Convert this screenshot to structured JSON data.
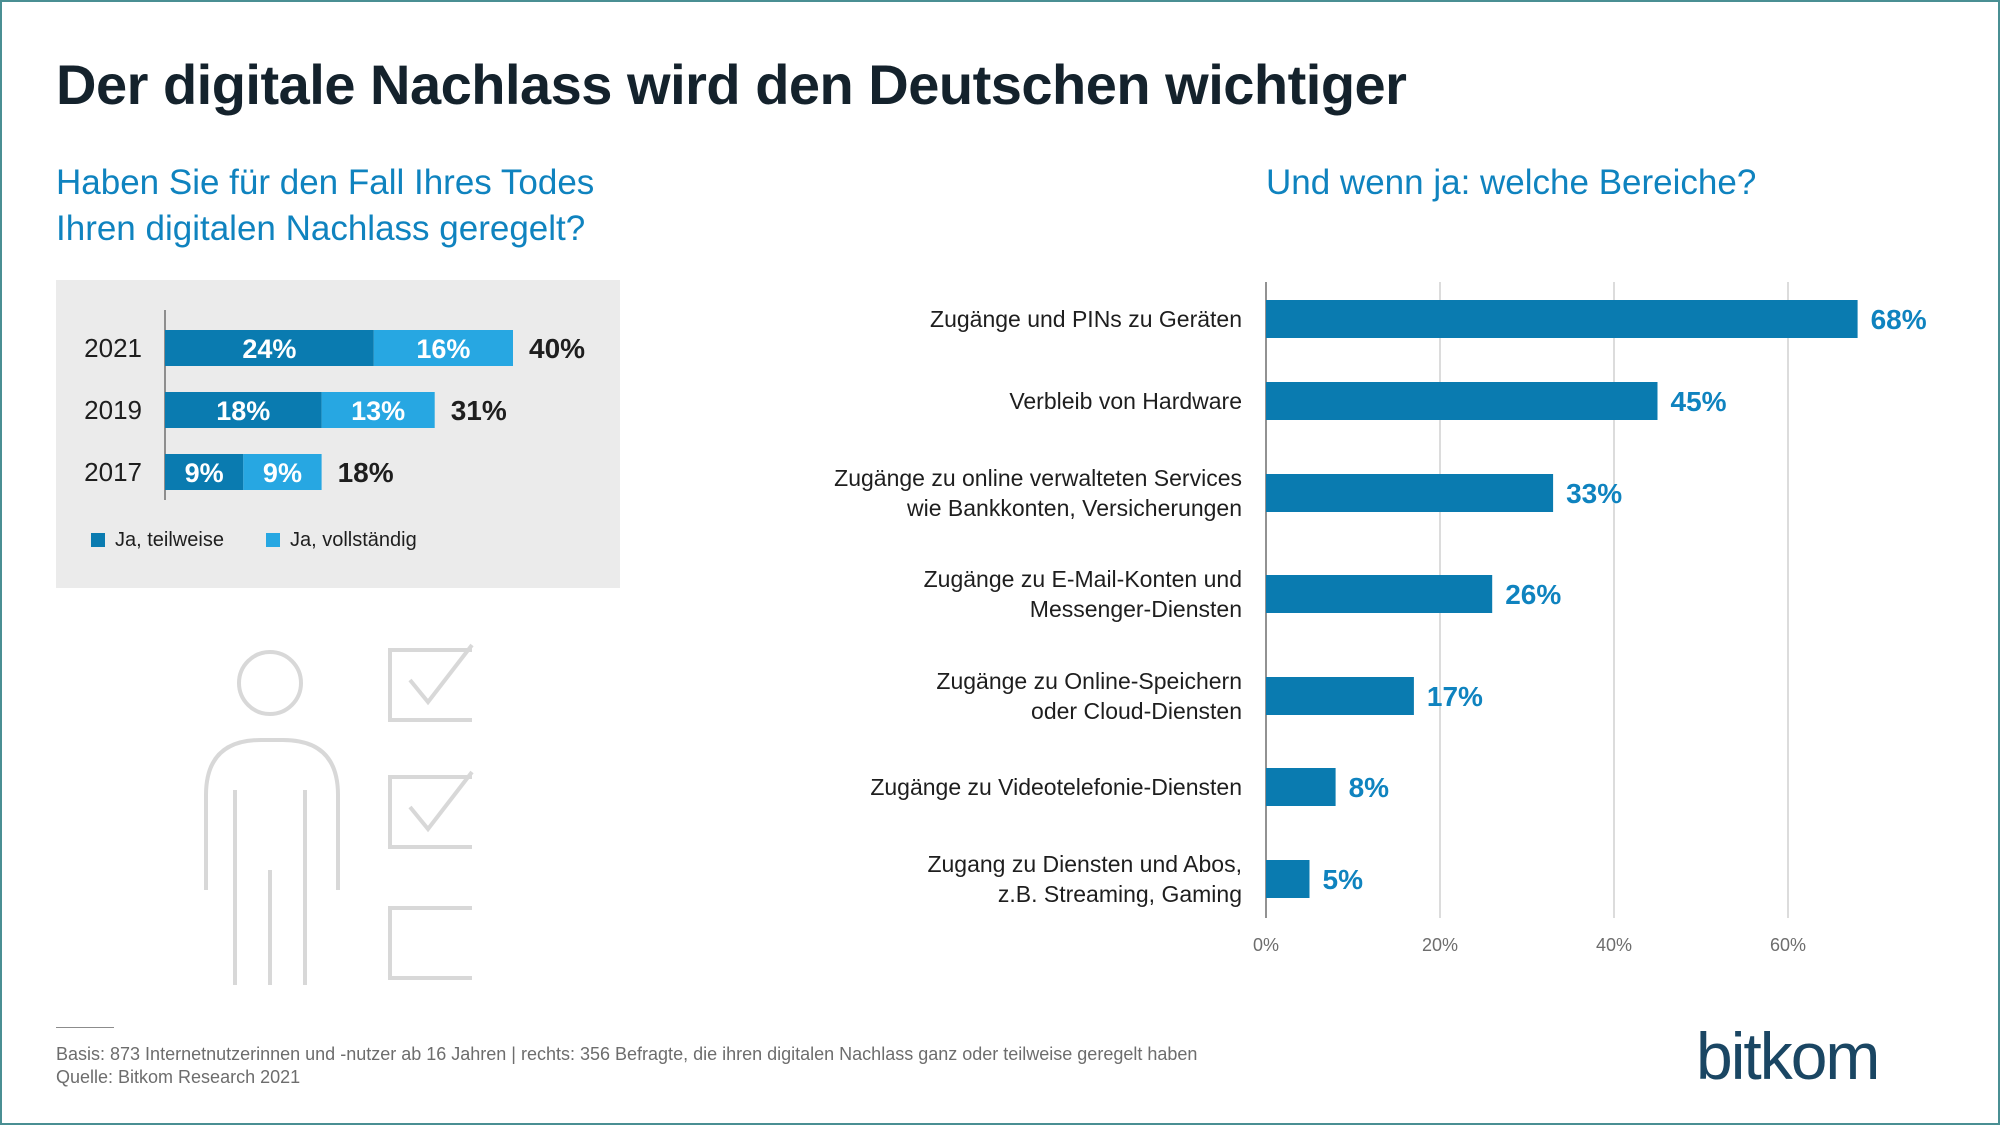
{
  "title": "Der digitale Nachlass wird den Deutschen wichtiger",
  "left_subtitle": [
    "Haben Sie für den Fall Ihres Todes",
    "Ihren digitalen Nachlass geregelt?"
  ],
  "right_subtitle": "Und wenn ja: welche Bereiche?",
  "colors": {
    "dark_blue": "#0a7bb0",
    "light_blue": "#27a7e2",
    "bar_blue": "#0a7bb0",
    "label_blue": "#0f83bf",
    "text_dark": "#1e1e1e",
    "icon_gray": "#d8d8d8"
  },
  "chart_data": [
    {
      "type": "bar",
      "orientation": "horizontal",
      "stacked": true,
      "categories": [
        "2021",
        "2019",
        "2017"
      ],
      "series": [
        {
          "name": "Ja, teilweise",
          "values": [
            24,
            18,
            9
          ],
          "labels": [
            "24%",
            "18%",
            "9%"
          ]
        },
        {
          "name": "Ja, vollständig",
          "values": [
            16,
            13,
            9
          ],
          "labels": [
            "16%",
            "13%",
            "9%"
          ]
        }
      ],
      "totals": [
        40,
        31,
        18
      ],
      "total_labels": [
        "40%",
        "31%",
        "18%"
      ],
      "legend_position": "bottom-left"
    },
    {
      "type": "bar",
      "orientation": "horizontal",
      "categories": [
        [
          "Zugänge und PINs zu Geräten"
        ],
        [
          "Verbleib von Hardware"
        ],
        [
          "Zugänge zu online verwalteten Services",
          "wie Bankkonten, Versicherungen"
        ],
        [
          "Zugänge zu E-Mail-Konten und",
          "Messenger-Diensten"
        ],
        [
          "Zugänge zu Online-Speichern",
          "oder Cloud-Diensten"
        ],
        [
          "Zugänge zu Videotelefonie-Diensten"
        ],
        [
          "Zugang zu Diensten und Abos,",
          "z.B. Streaming, Gaming"
        ]
      ],
      "values": [
        68,
        45,
        33,
        26,
        17,
        8,
        5
      ],
      "value_labels": [
        "68%",
        "45%",
        "33%",
        "26%",
        "17%",
        "8%",
        "5%"
      ],
      "xlim": [
        0,
        70
      ],
      "xticks": [
        0,
        20,
        40,
        60
      ],
      "xtick_labels": [
        "0%",
        "20%",
        "40%",
        "60%"
      ],
      "grid": true
    }
  ],
  "footer": {
    "basis": "Basis: 873 Internetnutzerinnen und -nutzer ab 16 Jahren | rechts: 356 Befragte, die ihren digitalen Nachlass ganz oder teilweise geregelt haben",
    "source": "Quelle: Bitkom Research 2021"
  },
  "logo": "bitkom"
}
